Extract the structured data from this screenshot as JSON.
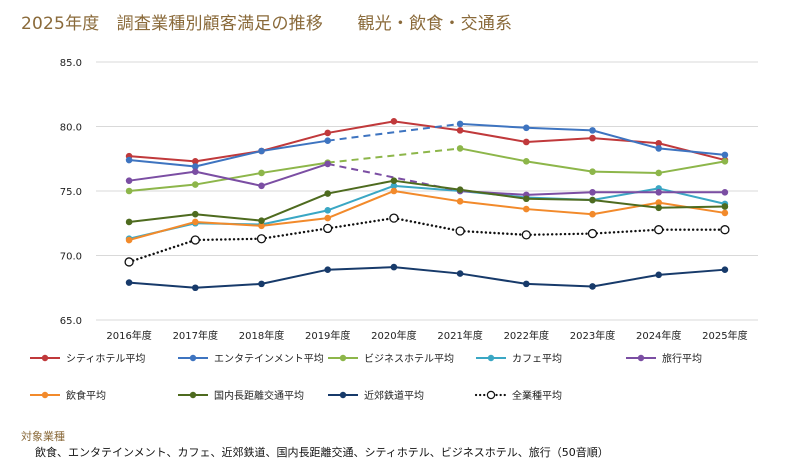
{
  "title": "2025年度　調査業種別顧客満足の推移　　観光・飲食・交通系",
  "chart_data": {
    "type": "line",
    "title": "2025年度　調査業種別顧客満足の推移　　観光・飲食・交通系",
    "xlabel": "",
    "ylabel": "",
    "ylim": [
      65.0,
      85.0
    ],
    "yticks": [
      "65.0",
      "70.0",
      "75.0",
      "80.0",
      "85.0"
    ],
    "grid": true,
    "legend_position": "bottom",
    "categories": [
      "2016年度",
      "2017年度",
      "2018年度",
      "2019年度",
      "2020年度",
      "2021年度",
      "2022年度",
      "2023年度",
      "2024年度",
      "2025年度"
    ],
    "series": [
      {
        "name": "シティホテル平均",
        "color": "#c0393b",
        "style": "solid",
        "marker": "filled",
        "values": [
          77.7,
          77.3,
          78.1,
          79.5,
          80.4,
          79.7,
          78.8,
          79.1,
          78.7,
          77.4
        ]
      },
      {
        "name": "エンタテインメント平均",
        "color": "#3e74c0",
        "style": "solid",
        "marker": "filled",
        "values": [
          77.4,
          76.9,
          78.1,
          78.9,
          null,
          80.2,
          79.9,
          79.7,
          78.3,
          77.8
        ]
      },
      {
        "name": "ビジネスホテル平均",
        "color": "#8db64a",
        "style": "solid",
        "marker": "filled",
        "values": [
          75.0,
          75.5,
          76.4,
          77.2,
          null,
          78.3,
          77.3,
          76.5,
          76.4,
          77.3
        ]
      },
      {
        "name": "カフェ平均",
        "color": "#3aa7c4",
        "style": "solid",
        "marker": "filled",
        "values": [
          71.3,
          72.5,
          72.4,
          73.5,
          75.4,
          75.0,
          74.5,
          74.3,
          75.2,
          74.0
        ]
      },
      {
        "name": "旅行平均",
        "color": "#7b4ea3",
        "style": "solid",
        "marker": "filled",
        "values": [
          75.8,
          76.5,
          75.4,
          77.1,
          null,
          75.0,
          74.7,
          74.9,
          74.9,
          74.9
        ]
      },
      {
        "name": "飲食平均",
        "color": "#f28a2b",
        "style": "solid",
        "marker": "filled",
        "values": [
          71.2,
          72.6,
          72.3,
          72.9,
          75.0,
          74.2,
          73.6,
          73.2,
          74.1,
          73.3
        ]
      },
      {
        "name": "国内長距離交通平均",
        "color": "#4e6b1f",
        "style": "solid",
        "marker": "filled",
        "values": [
          72.6,
          73.2,
          72.7,
          74.8,
          75.8,
          75.1,
          74.4,
          74.3,
          73.7,
          73.8
        ]
      },
      {
        "name": "近郊鉄道平均",
        "color": "#173a6a",
        "style": "solid",
        "marker": "filled",
        "values": [
          67.9,
          67.5,
          67.8,
          68.9,
          69.1,
          68.6,
          67.8,
          67.6,
          68.5,
          68.9
        ]
      },
      {
        "name": "全業種平均",
        "color": "#111111",
        "style": "dotted",
        "marker": "hollow",
        "values": [
          69.5,
          71.2,
          71.3,
          72.1,
          72.9,
          71.9,
          71.6,
          71.7,
          72.0,
          72.0
        ]
      }
    ],
    "gap_bridging": "dashed line spans missing 2020 values"
  },
  "footer": {
    "label": "対象業種",
    "text": "飲食、エンタテインメント、カフェ、近郊鉄道、国内長距離交通、シティホテル、ビジネスホテル、旅行（50音順）"
  }
}
